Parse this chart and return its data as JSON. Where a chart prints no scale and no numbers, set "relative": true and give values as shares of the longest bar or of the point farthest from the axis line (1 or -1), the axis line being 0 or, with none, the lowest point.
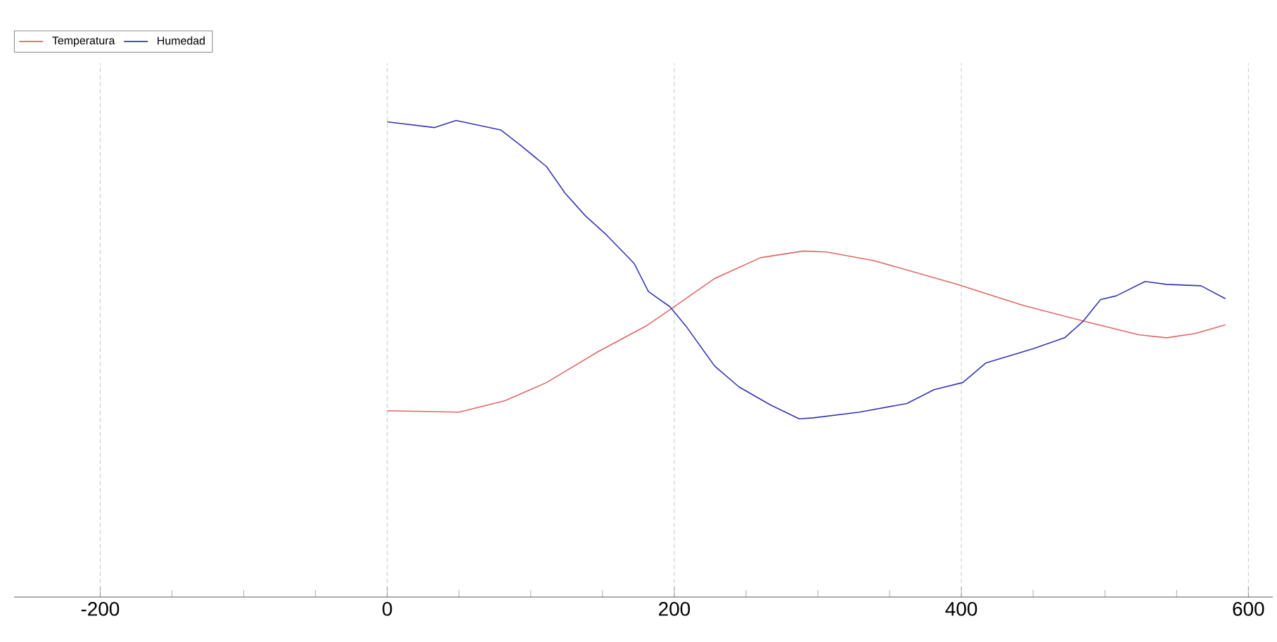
{
  "chart_data": {
    "type": "line",
    "relative": true,
    "xlim": [
      -260,
      617
    ],
    "xticks": [
      -200,
      0,
      200,
      400,
      600
    ],
    "grid": true,
    "legend": "top left",
    "tick_labels": "x",
    "marker": "none",
    "line_style": "solid",
    "series": [
      {
        "name": "Temperatura",
        "color": "#e06666",
        "x": [
          0,
          50,
          82,
          111,
          147,
          180,
          197,
          228,
          260,
          290,
          306,
          339,
          397,
          443,
          485,
          524,
          543,
          563,
          584
        ],
        "values": [
          0.391,
          0.388,
          0.412,
          0.45,
          0.515,
          0.568,
          0.603,
          0.668,
          0.712,
          0.726,
          0.724,
          0.706,
          0.656,
          0.612,
          0.579,
          0.55,
          0.544,
          0.553,
          0.571
        ]
      },
      {
        "name": "Humedad",
        "color": "#3535b5",
        "x": [
          0,
          33,
          48,
          79,
          92,
          111,
          124,
          138,
          153,
          172,
          182,
          197,
          209,
          228,
          245,
          267,
          287,
          297,
          329,
          362,
          381,
          401,
          417,
          450,
          472,
          485,
          497,
          508,
          528,
          543,
          567,
          584
        ],
        "values": [
          0.997,
          0.985,
          1.0,
          0.98,
          0.95,
          0.903,
          0.847,
          0.8,
          0.759,
          0.7,
          0.641,
          0.609,
          0.565,
          0.485,
          0.441,
          0.403,
          0.374,
          0.376,
          0.388,
          0.406,
          0.435,
          0.45,
          0.491,
          0.521,
          0.544,
          0.579,
          0.624,
          0.632,
          0.662,
          0.656,
          0.653,
          0.626
        ]
      }
    ]
  }
}
